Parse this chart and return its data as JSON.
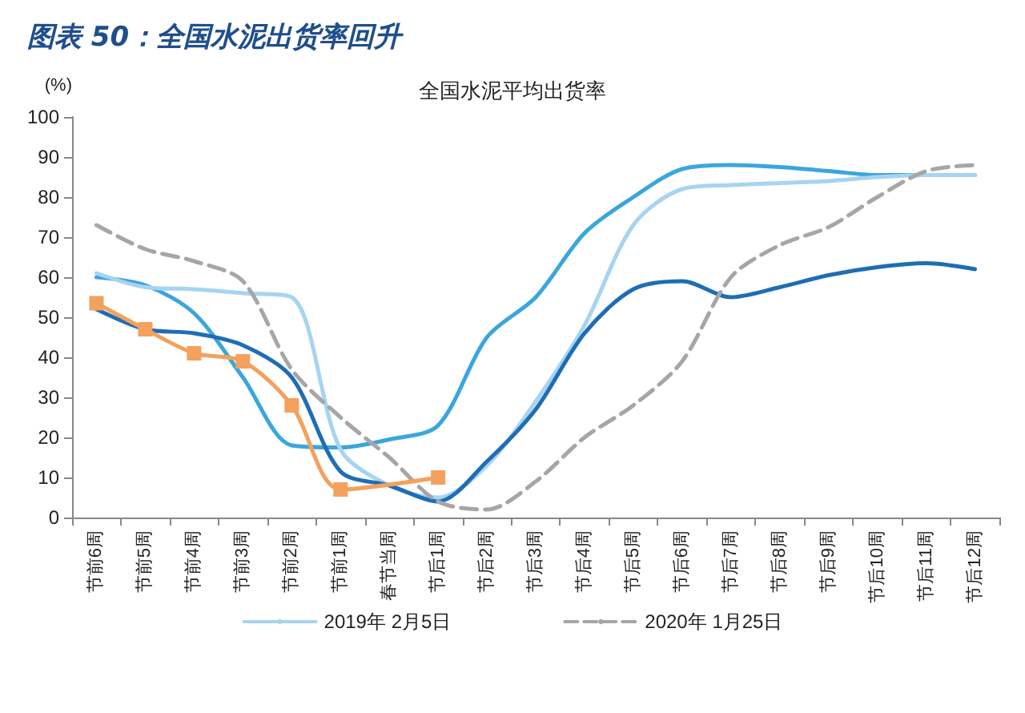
{
  "chart_data": {
    "type": "line",
    "title": "图表 50：全国水泥出货率回升",
    "subtitle": "全国水泥平均出货率",
    "ylabel": "(%)",
    "categories": [
      "节前6周",
      "节前5周",
      "节前4周",
      "节前3周",
      "节前2周",
      "节前1周",
      "春节当周",
      "节后1周",
      "节后2周",
      "节后3周",
      "节后4周",
      "节后5周",
      "节后6周",
      "节后7周",
      "节后8周",
      "节后9周",
      "节后10周",
      "节后11周",
      "节后12周"
    ],
    "series": [
      {
        "color": "#3aa6dd",
        "values": [
          60,
          58,
          51,
          35,
          18,
          17.5,
          19.5,
          23,
          45,
          55,
          71,
          80,
          87,
          88,
          87.5,
          86.5,
          85.5,
          85.5,
          85.5
        ]
      },
      {
        "name": "2019年 2月5日",
        "color": "#a6d4f2",
        "values": [
          61,
          57.5,
          57,
          56,
          55,
          17,
          8,
          5,
          13,
          29,
          48,
          73,
          82,
          83,
          83.5,
          84,
          85,
          85.5,
          85.5
        ]
      },
      {
        "color": "#1f6db5",
        "values": [
          52,
          47,
          46,
          43,
          35,
          11.5,
          8,
          4,
          14,
          27,
          46,
          57,
          59,
          55,
          57.5,
          60.5,
          62.5,
          63.5,
          62
        ]
      },
      {
        "name": "2020年 1月25日",
        "color": "#a6a6a6",
        "line_style": "dashed",
        "values": [
          73,
          67,
          64,
          59,
          37,
          25,
          15,
          4,
          2,
          9,
          20,
          28,
          39,
          60,
          68,
          72.5,
          80,
          86.5,
          88
        ]
      },
      {
        "color": "#f4a15d",
        "marker": "square",
        "values": [
          53.5,
          47,
          41,
          39,
          28,
          7,
          null,
          10,
          null,
          null,
          null,
          null,
          null,
          null,
          null,
          null,
          null,
          null,
          null
        ]
      }
    ],
    "ylim": [
      0,
      100
    ],
    "yticks": [
      0,
      10,
      20,
      30,
      40,
      50,
      60,
      70,
      80,
      90,
      100
    ],
    "grid": false,
    "legend": "bottom"
  }
}
